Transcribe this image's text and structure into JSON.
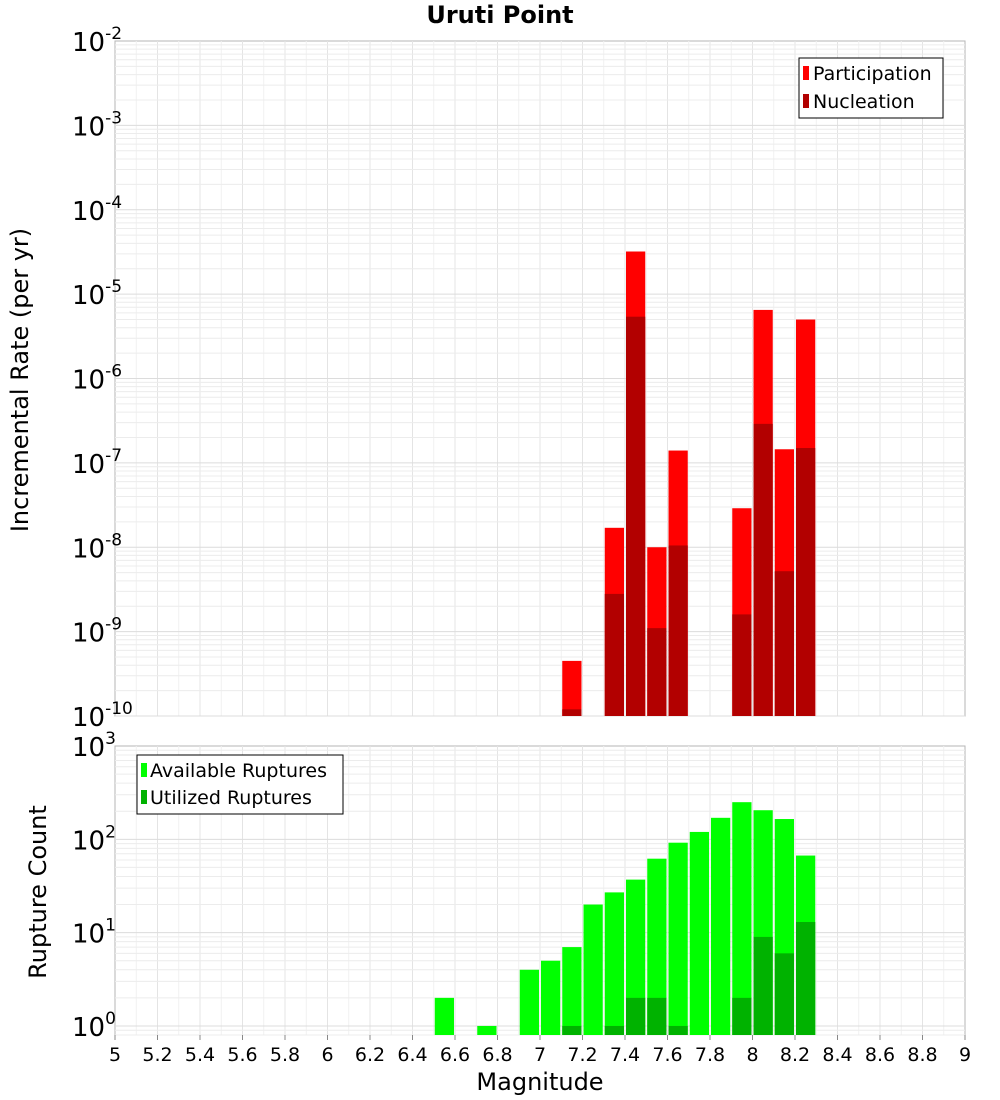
{
  "chart_data": [
    {
      "type": "bar",
      "title": "Uruti Point",
      "ylabel": "Incremental Rate (per yr)",
      "xlabel": "",
      "yscale": "log",
      "ylim": [
        1e-10,
        0.01
      ],
      "xlim": [
        5,
        9
      ],
      "grid": true,
      "legend_position": "top-right",
      "bin_width": 0.1,
      "colors": {
        "Participation": "#ff0000",
        "Nucleation": "#b20000"
      },
      "series": [
        {
          "name": "Participation",
          "x": [
            7.15,
            7.35,
            7.45,
            7.55,
            7.65,
            7.95,
            8.05,
            8.15,
            8.25
          ],
          "values": [
            4.5e-10,
            1.7e-08,
            3.2e-05,
            1e-08,
            1.4e-07,
            2.9e-08,
            6.5e-06,
            1.45e-07,
            5e-06
          ]
        },
        {
          "name": "Nucleation",
          "x": [
            7.15,
            7.35,
            7.45,
            7.55,
            7.65,
            7.95,
            8.05,
            8.15,
            8.25
          ],
          "values": [
            1.2e-10,
            2.8e-09,
            5.4e-06,
            1.1e-09,
            1.05e-08,
            1.6e-09,
            2.9e-07,
            5.2e-09,
            1.5e-07
          ]
        }
      ]
    },
    {
      "type": "bar",
      "title": "",
      "ylabel": "Rupture Count",
      "xlabel": "Magnitude",
      "yscale": "log",
      "ylim": [
        0.8,
        1000
      ],
      "xlim": [
        5,
        9
      ],
      "grid": true,
      "legend_position": "top-left",
      "bin_width": 0.1,
      "colors": {
        "Available Ruptures": "#00ff00",
        "Utilized Ruptures": "#00b200"
      },
      "x_ticks": [
        "5",
        "5.2",
        "5.4",
        "5.6",
        "5.8",
        "6",
        "6.2",
        "6.4",
        "6.6",
        "6.8",
        "7",
        "7.2",
        "7.4",
        "7.6",
        "7.8",
        "8",
        "8.2",
        "8.4",
        "8.6",
        "8.8",
        "9"
      ],
      "series": [
        {
          "name": "Available Ruptures",
          "x": [
            6.55,
            6.75,
            6.95,
            7.05,
            7.15,
            7.25,
            7.35,
            7.45,
            7.55,
            7.65,
            7.75,
            7.85,
            7.95,
            8.05,
            8.15,
            8.25
          ],
          "values": [
            2,
            1,
            4,
            5,
            7,
            20,
            27,
            37,
            62,
            92,
            120,
            170,
            250,
            205,
            165,
            67
          ]
        },
        {
          "name": "Utilized Ruptures",
          "x": [
            7.15,
            7.35,
            7.45,
            7.55,
            7.65,
            7.95,
            8.05,
            8.15,
            8.25
          ],
          "values": [
            1,
            1,
            2,
            2,
            1,
            2,
            9,
            6,
            13
          ]
        }
      ]
    }
  ]
}
